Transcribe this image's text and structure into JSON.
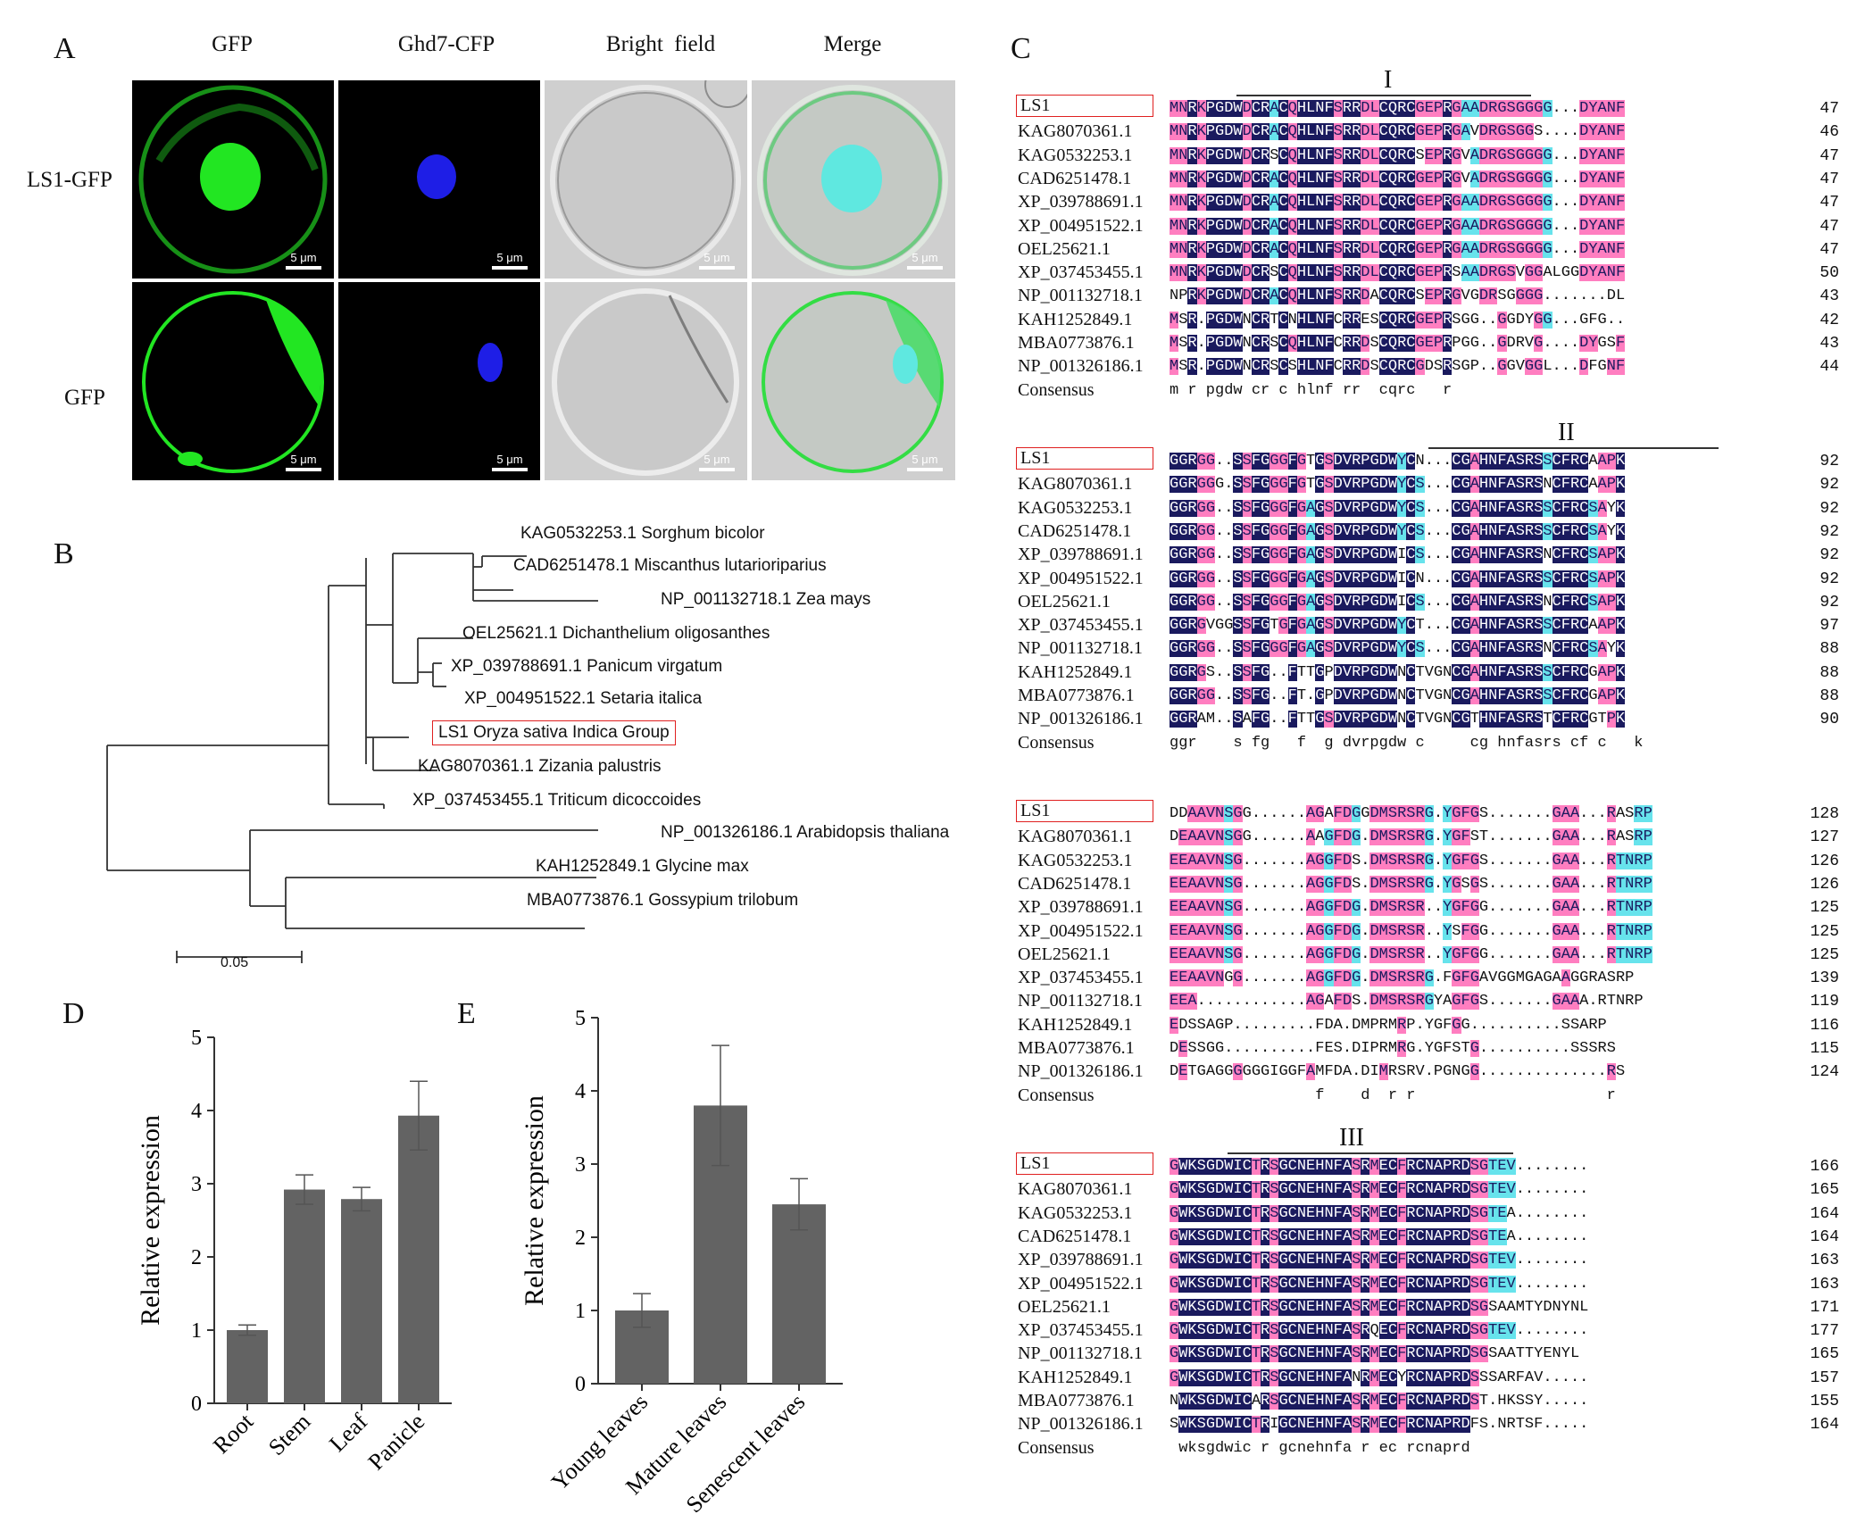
{
  "panels": {
    "A": "A",
    "B": "B",
    "C": "C",
    "D": "D",
    "E": "E"
  },
  "panel_a": {
    "columns": [
      "GFP",
      "Ghd7-CFP",
      "Bright  field",
      "Merge"
    ],
    "rows": [
      "LS1-GFP",
      "GFP"
    ],
    "scale": "5 μm",
    "colors": {
      "gfp": "#22e622",
      "cfp": "#1e1ee6",
      "merge_nucleus": "#5fe8e0",
      "bright": "#cfcfcf"
    }
  },
  "panel_b": {
    "taxa": [
      "KAG0532253.1 Sorghum bicolor",
      "CAD6251478.1 Miscanthus lutarioriparius",
      "NP_001132718.1 Zea mays",
      "OEL25621.1 Dichanthelium oligosanthes",
      "XP_039788691.1 Panicum virgatum",
      "XP_004951522.1 Setaria italica",
      "LS1 Oryza sativa Indica Group",
      "KAG8070361.1 Zizania palustris",
      "XP_037453455.1 Triticum dicoccoides",
      "NP_001326186.1 Arabidopsis thaliana",
      "KAH1252849.1 Glycine max",
      "MBA0773876.1 Gossypium trilobum"
    ],
    "scale_label": "0.05"
  },
  "panel_c": {
    "names": [
      "LS1",
      "KAG8070361.1",
      "KAG0532253.1",
      "CAD6251478.1",
      "XP_039788691.1",
      "XP_004951522.1",
      "OEL25621.1",
      "XP_037453455.1",
      "NP_001132718.1",
      "KAH1252849.1",
      "MBA0773876.1",
      "NP_001326186.1"
    ],
    "consensus_label": "Consensus",
    "blocks": [
      {
        "roman": "I",
        "seqs": [
          "MNRKPGDWDCRACQHLNFSRRDLCQRCGEPRGAADRGSGGGG...DYANF",
          "MNRKPGDWDCRACQHLNFSRRDLCQRCGEPRGAVDRGSGGS....DYANF",
          "MNRKPGDWDCRSCQHLNFSRRDLCQRCSEPRGVADRGSGGGG...DYANF",
          "MNRKPGDWDCRACQHLNFSRRDLCQRCGEPRGVADRGSGGGG...DYANF",
          "MNRKPGDWDCRACQHLNFSRRDLCQRCGEPRGAADRGSGGGG...DYANF",
          "MNRKPGDWDCRACQHLNFSRRDLCQRCGEPRGAADRGSGGGG...DYANF",
          "MNRKPGDWDCRACQHLNFSRRDLCQRCGEPRGAADRGSGGGG...DYANF",
          "MNRKPGDWDCRSCQHLNFSRRDLCQRCGEPRSAADRGSVGGALGGDYANF",
          "NPRKPGDWDCRACQHLNFSRRDACQRCSEPRGVGDRSGGGG.......DL",
          "MSR.PGDWNCRTCNHLNFCRRESCQRCGEPRSGG..GGDYGG...GFG..",
          "MSR.PGDWNCRSCQHLNFCRRDSCQRCGEPRPGG..GDRVG....DYGSF",
          "MSR.PGDWNCRSCSHLNFCRRDSCQRCGDSRSGP..GGVGGL...DFGNF"
        ],
        "consensus": "m r pgdw cr c hlnf rr  cqrc   r",
        "ends": [
          "47",
          "46",
          "47",
          "47",
          "47",
          "47",
          "47",
          "50",
          "43",
          "42",
          "43",
          "44"
        ]
      },
      {
        "roman": "II",
        "seqs": [
          "GGRGG..SSFGGGFGTGSDVRPGDWYCN...CGAHNFASRSSCFRCAAPK",
          "GGRGGG.SSFGGGFGTGSDVRPGDWYCS...CGAHNFASRSNCFRCAAPK",
          "GGRGG..SSFGGGFGAGSDVRPGDWYCS...CGAHNFASRSSCFRCSAYK",
          "GGRGG..SSFGGGFGAGSDVRPGDWYCS...CGAHNFASRSSCFRCSAYK",
          "GGRGG..SSFGGGFGAGSDVRPGDWICS...CGAHNFASRSNCFRCSAPK",
          "GGRGG..SSFGGGFGAGSDVRPGDWICN...CGAHNFASRSSCFRCSAPK",
          "GGRGG..SSFGGGFGAGSDVRPGDWICS...CGAHNFASRSNCFRCSAPK",
          "GGRGVGGSSFGTGFGAGSDVRPGDWYCT...CGAHNFASRSSCFRCAAPK",
          "GGRGG..SSFGGGFGAGSDVRPGDWYCS...CGAHNFASRSNCFRCSAYK",
          "GGRGS..SSFG..FTTGPDVRPGDWNCTVGNCGAHNFASRSSCFRCGAPK",
          "GGRGG..SSFG..FT.GPDVRPGDWNCTVGNCGAHNFASRSSCFRCGAPK",
          "GGRAM..SAFG..FTTGSDVRPGDWNCTVGNCGTHNFASRSTCFRCGTPK"
        ],
        "consensus": "ggr    s fg   f  g dvrpgdw c     cg hnfasrs cf c   k",
        "ends": [
          "92",
          "92",
          "92",
          "92",
          "92",
          "92",
          "92",
          "97",
          "88",
          "88",
          "88",
          "90"
        ]
      },
      {
        "roman": "",
        "seqs": [
          "DDAAVNSGG......AGAFDGGDMSRSRG.YGFGS.......GAA...RASRP",
          "DEAAVNSGG......AAGFDG.DMSRSRG.YGFST.......GAA...RASRP",
          "EEAAVNSG.......AGGFDS.DMSRSRG.YGFGS.......GAA...RTNRP",
          "EEAAVNSG.......AGGFDS.DMSRSRG.YGSGS.......GAA...RTNRP",
          "EEAAVNSG.......AGGFDG.DMSRSR..YGFGG.......GAA...RTNRP",
          "EEAAVNSG.......AGGFDG.DMSRSR..YSFGG.......GAA...RTNRP",
          "EEAAVNSG.......AGGFDG.DMSRSR..YGFGG.......GAA...RTNRP",
          "EEAAVNGG.......AGGFDG.DMSRSRG.FGFGAVGGMGAGAAGGRASRP",
          "EEA............AGAFDS.DMSRSRGYAGFGS.......GAAA.RTNRP",
          "EDSSAGP.........FDA.DMPRMRP.YGFGG..........SSARP",
          "DESSGG..........FES.DIPRMRG.YGFSTG..........SSSRS",
          "DETGAGGGGGGIGGFAMFDA.DIMRSRV.PGNGG..............RS"
        ],
        "consensus": "                f    d  r r                     r",
        "ends": [
          "128",
          "127",
          "126",
          "126",
          "125",
          "125",
          "125",
          "139",
          "119",
          "116",
          "115",
          "124"
        ]
      },
      {
        "roman": "III",
        "seqs": [
          "GWKSGDWICTRSGCNEHNFASRMECFRCNAPRDSGTEV........",
          "GWKSGDWICTRSGCNEHNFASRMECFRCNAPRDSGTEV........",
          "GWKSGDWICTRSGCNEHNFASRMECFRCNAPRDSGTEA........",
          "GWKSGDWICTRSGCNEHNFASRMECFRCNAPRDSGTEA........",
          "GWKSGDWICTRSGCNEHNFASRMECFRCNAPRDSGTEV........",
          "GWKSGDWICTRSGCNEHNFASRMECFRCNAPRDSGTEV........",
          "GWKSGDWICTRSGCNEHNFASRMECFRCNAPRDSGSAAMTYDNYNL",
          "GWKSGDWICTRSGCNEHNFASRQECFRCNAPRDSGTEV........",
          "GWKSGDWICTRSGCNEHNFASRMECFRCNAPRDSGSAATTYENYL",
          "GWKSGDWICTRSGCNEHNFANRMECYRCNAPRDSSSARFAV.....",
          "NWKSGDWICARSGCNEHNFASRMECFRCNAPRDST.HKSSY.....",
          "SWKSGDWICTRIGCNEHNFASRMECFRCNAPRDFS.NRTSF....."
        ],
        "consensus": " wksgdwic r gcnehnfa r ec rcnaprd",
        "ends": [
          "166",
          "165",
          "164",
          "164",
          "163",
          "163",
          "171",
          "177",
          "165",
          "157",
          "155",
          "164"
        ]
      }
    ]
  },
  "chart_data": [
    {
      "type": "bar",
      "categories": [
        "Root",
        "Stem",
        "Leaf",
        "Panicle"
      ],
      "values": [
        1.0,
        2.92,
        2.79,
        3.93
      ],
      "errors": [
        0.07,
        0.2,
        0.16,
        0.47
      ],
      "ylabel": "Relative expression",
      "ylim": [
        0,
        5
      ],
      "yticks": [
        "0",
        "1",
        "2",
        "3",
        "4",
        "5"
      ],
      "bar_color": "#636363"
    },
    {
      "type": "bar",
      "categories": [
        "Young leaves",
        "Mature leaves",
        "Senescent leaves"
      ],
      "values": [
        1.0,
        3.8,
        2.45
      ],
      "errors": [
        0.23,
        0.82,
        0.35
      ],
      "ylabel": "Relative expression",
      "ylim": [
        0,
        5
      ],
      "yticks": [
        "0",
        "1",
        "2",
        "3",
        "4",
        "5"
      ],
      "bar_color": "#636363"
    }
  ]
}
